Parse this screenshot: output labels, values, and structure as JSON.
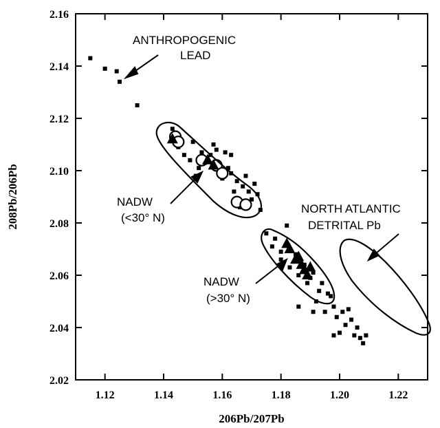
{
  "chart_data": {
    "type": "scatter",
    "xlabel": "206Pb/207Pb",
    "ylabel": "208Pb/206Pb",
    "xlim": [
      1.11,
      1.23
    ],
    "ylim": [
      2.02,
      2.16
    ],
    "xticks": [
      "1.12",
      "1.14",
      "1.16",
      "1.18",
      "1.20",
      "1.22"
    ],
    "yticks": [
      "2.02",
      "2.04",
      "2.06",
      "2.08",
      "2.10",
      "2.12",
      "2.14",
      "2.16"
    ],
    "series": [
      {
        "marker": "square",
        "color": "#000000",
        "points": [
          [
            1.115,
            2.143
          ],
          [
            1.12,
            2.139
          ],
          [
            1.124,
            2.138
          ],
          [
            1.125,
            2.134
          ],
          [
            1.131,
            2.125
          ],
          [
            1.143,
            2.116
          ],
          [
            1.145,
            2.109
          ],
          [
            1.147,
            2.106
          ],
          [
            1.149,
            2.104
          ],
          [
            1.15,
            2.111
          ],
          [
            1.151,
            2.098
          ],
          [
            1.152,
            2.101
          ],
          [
            1.153,
            2.107
          ],
          [
            1.154,
            2.103
          ],
          [
            1.156,
            2.106
          ],
          [
            1.157,
            2.11
          ],
          [
            1.158,
            2.101
          ],
          [
            1.158,
            2.108
          ],
          [
            1.16,
            2.097
          ],
          [
            1.161,
            2.107
          ],
          [
            1.162,
            2.101
          ],
          [
            1.163,
            2.099
          ],
          [
            1.163,
            2.106
          ],
          [
            1.164,
            2.092
          ],
          [
            1.165,
            2.096
          ],
          [
            1.166,
            2.086
          ],
          [
            1.167,
            2.094
          ],
          [
            1.168,
            2.098
          ],
          [
            1.169,
            2.092
          ],
          [
            1.17,
            2.089
          ],
          [
            1.171,
            2.095
          ],
          [
            1.172,
            2.091
          ],
          [
            1.173,
            2.085
          ],
          [
            1.175,
            2.076
          ],
          [
            1.177,
            2.071
          ],
          [
            1.178,
            2.074
          ],
          [
            1.18,
            2.066
          ],
          [
            1.182,
            2.079
          ],
          [
            1.183,
            2.063
          ],
          [
            1.185,
            2.068
          ],
          [
            1.186,
            2.06
          ],
          [
            1.188,
            2.064
          ],
          [
            1.189,
            2.057
          ],
          [
            1.19,
            2.059
          ],
          [
            1.191,
            2.061
          ],
          [
            1.192,
            2.05
          ],
          [
            1.193,
            2.054
          ],
          [
            1.194,
            2.057
          ],
          [
            1.195,
            2.046
          ],
          [
            1.196,
            2.053
          ],
          [
            1.197,
            2.052
          ],
          [
            1.198,
            2.048
          ],
          [
            1.198,
            2.037
          ],
          [
            1.199,
            2.044
          ],
          [
            1.2,
            2.038
          ],
          [
            1.201,
            2.046
          ],
          [
            1.202,
            2.041
          ],
          [
            1.203,
            2.047
          ],
          [
            1.204,
            2.043
          ],
          [
            1.205,
            2.037
          ],
          [
            1.206,
            2.04
          ],
          [
            1.207,
            2.036
          ],
          [
            1.208,
            2.034
          ],
          [
            1.209,
            2.037
          ],
          [
            1.191,
            2.046
          ],
          [
            1.186,
            2.048
          ],
          [
            1.18,
            2.069
          ]
        ]
      },
      {
        "marker": "open-circle",
        "color": "#000000",
        "points": [
          [
            1.144,
            2.113
          ],
          [
            1.145,
            2.111
          ],
          [
            1.153,
            2.104
          ],
          [
            1.158,
            2.102
          ],
          [
            1.16,
            2.099
          ],
          [
            1.165,
            2.088
          ],
          [
            1.168,
            2.087
          ]
        ]
      },
      {
        "marker": "filled-triangle",
        "color": "#000000",
        "points": [
          [
            1.143,
            2.112
          ],
          [
            1.155,
            2.104
          ],
          [
            1.157,
            2.102
          ],
          [
            1.182,
            2.072
          ],
          [
            1.183,
            2.07
          ],
          [
            1.185,
            2.066
          ],
          [
            1.187,
            2.064
          ],
          [
            1.188,
            2.062
          ],
          [
            1.189,
            2.06
          ],
          [
            1.19,
            2.063
          ],
          [
            1.186,
            2.067
          ]
        ]
      }
    ],
    "annotations": [
      {
        "lines": [
          "ANTHROPOGENIC",
          "LEAD"
        ]
      },
      {
        "lines": [
          "NADW",
          "(<30° N)"
        ]
      },
      {
        "lines": [
          "NORTH ATLANTIC",
          "DETRITAL Pb"
        ]
      },
      {
        "lines": [
          "NADW",
          "(>30° N)"
        ]
      }
    ]
  }
}
